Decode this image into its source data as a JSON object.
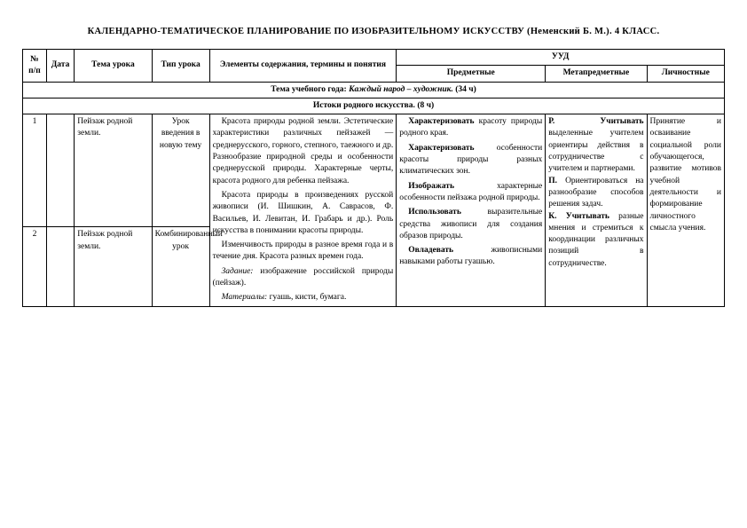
{
  "title": "КАЛЕНДАРНО-ТЕМАТИЧЕСКОЕ ПЛАНИРОВАНИЕ ПО ИЗОБРАЗИТЕЛЬНОМУ ИСКУССТВУ (Неменский Б. М.). 4 КЛАСС.",
  "headers": {
    "num": "№ п/п",
    "date": "Дата",
    "topic": "Тема урока",
    "type": "Тип урока",
    "elements": "Элементы содержания, термины и понятия",
    "uud": "УУД",
    "pred": "Предметные",
    "meta": "Метапредметные",
    "pers": "Личностные"
  },
  "year_theme": {
    "label": "Тема учебного года:",
    "name": "Каждый народ – художник.",
    "hours": "(34 ч)"
  },
  "section": {
    "name": "Истоки родного искусства.",
    "hours": "(8 ч)"
  },
  "rows": {
    "r1": {
      "num": "1",
      "topic": "Пейзаж родной земли.",
      "type": "Урок введения в новую тему"
    },
    "r2": {
      "num": "2",
      "topic": "Пейзаж родной земли.",
      "type": "Комбинированный урок"
    }
  },
  "elements": {
    "p1": "Красота природы родной земли. Эстетические характеристики различных пейзажей — среднерусского, горного, степного, таежного и др. Разнообразие природной среды и особенности среднерусской природы. Характерные черты, красота родного для ребенка пейзажа.",
    "p2": "Красота природы в произведениях русской живописи (И. Шишкин, А. Саврасов, Ф. Васильев, И. Левитан, И. Грабарь и др.). Роль искусства в понимании красоты природы.",
    "p3": "Изменчивость природы в разное время года и в течение дня. Красота разных времен года.",
    "task_label": "Задание:",
    "task_text": " изображение российской природы (пейзаж).",
    "mat_label": "Материалы:",
    "mat_text": " гуашь, кисти, бумага."
  },
  "pred": {
    "p1a": "Характеризовать",
    "p1b": " красоту природы родного края.",
    "p2a": "Характеризовать",
    "p2b": " особенности красоты природы разных климатических зон.",
    "p3a": "Изображать",
    "p3b": " характерные особенности пейзажа родной природы.",
    "p4a": "Использовать",
    "p4b": " выразительные средства живописи для создания образов природы.",
    "p5a": "Овладевать",
    "p5b": " живописными навыками работы гуашью."
  },
  "meta": {
    "r_label": "Р.",
    "r_kw": "Учитывать",
    "r_text": " выделенные учителем ориентиры действия в сотрудничестве с учителем и партнерами.",
    "p_label": "П.",
    "p_text": "Ориентироваться на разнообразие способов решения задач.",
    "k_label": "К.",
    "k_kw": "Учитывать",
    "k_text": " разные мнения и стремиться к координации различных позиций в сотрудничестве."
  },
  "pers": {
    "text": "Принятие и осваивание социальной роли обучающегося, развитие мотивов учебной деятельности и формирование личностного смысла учения."
  }
}
